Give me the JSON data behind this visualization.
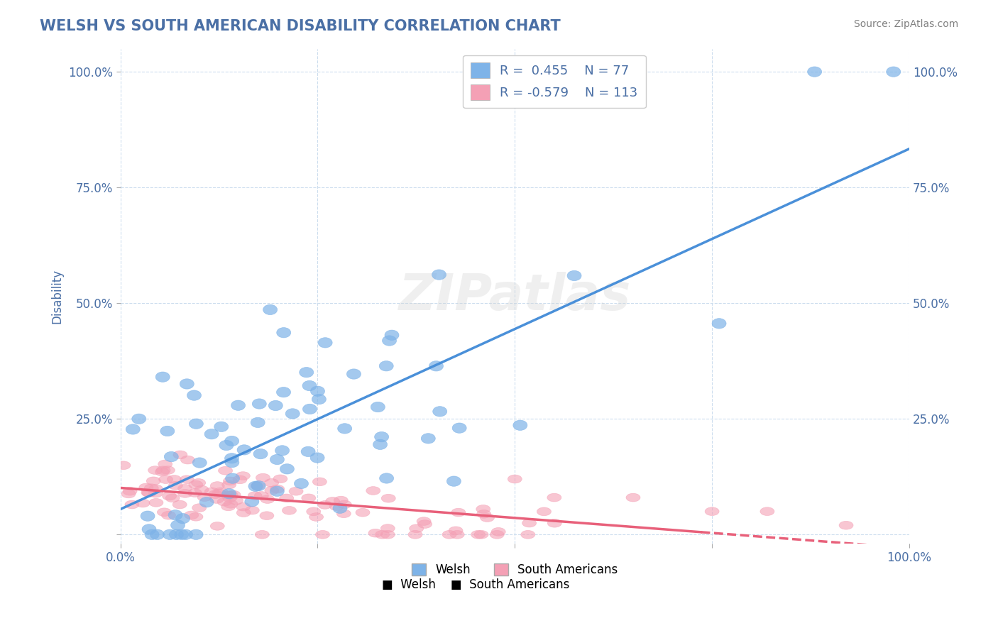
{
  "title": "WELSH VS SOUTH AMERICAN DISABILITY CORRELATION CHART",
  "source": "Source: ZipAtlas.com",
  "xlabel": "",
  "ylabel": "Disability",
  "xlim": [
    0.0,
    1.0
  ],
  "ylim": [
    -0.02,
    1.05
  ],
  "xticks": [
    0.0,
    0.25,
    0.5,
    0.75,
    1.0
  ],
  "xticklabels": [
    "0.0%",
    "",
    "",
    "",
    "100.0%"
  ],
  "yticks": [
    0.0,
    0.25,
    0.5,
    0.75,
    1.0
  ],
  "yticklabels": [
    "",
    "25.0%",
    "50.0%",
    "75.0%",
    "100.0%"
  ],
  "welsh_R": 0.455,
  "welsh_N": 77,
  "sa_R": -0.579,
  "sa_N": 113,
  "blue_color": "#7EB3E8",
  "pink_color": "#F4A0B5",
  "blue_line_color": "#4A90D9",
  "pink_line_color": "#E8607A",
  "title_color": "#4A6FA5",
  "axis_label_color": "#4A6FA5",
  "tick_label_color": "#4A6FA5",
  "legend_r_color": "#4A6FA5",
  "watermark": "ZIPatlas",
  "background_color": "#FFFFFF",
  "grid_color": "#CCDDEE",
  "seed_welsh": 42,
  "seed_sa": 123
}
